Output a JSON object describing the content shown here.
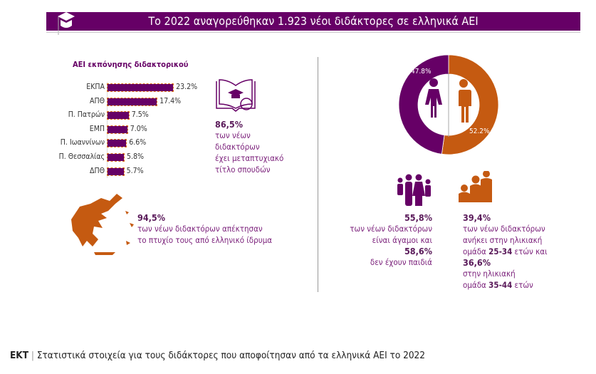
{
  "header": {
    "title": "Το 2022 αναγορεύθηκαν 1.923 νέοι διδάκτορες σε ελληνικά ΑΕΙ",
    "icon": "graduation-cap-icon"
  },
  "colors": {
    "purple": "#660066",
    "orange": "#c55a11"
  },
  "chart_data": [
    {
      "type": "bar",
      "orientation": "horizontal",
      "title": "ΑΕΙ εκπόνησης διδακτορικού",
      "categories": [
        "ΕΚΠΑ",
        "ΑΠΘ",
        "Π. Πατρών",
        "ΕΜΠ",
        "Π. Ιωαννίνων",
        "Π. Θεσσαλίας",
        "ΔΠΘ"
      ],
      "values": [
        23.2,
        17.4,
        7.5,
        7.0,
        6.6,
        5.8,
        5.7
      ],
      "labels": [
        "23.2%",
        "17.4%",
        "7.5%",
        "7.0%",
        "6.6%",
        "5.8%",
        "5.7%"
      ]
    },
    {
      "type": "pie",
      "donut": true,
      "slices": [
        {
          "label": "47.8%",
          "value": 47.8,
          "color": "#660066",
          "icon": "female-icon"
        },
        {
          "label": "52.2%",
          "value": 52.2,
          "color": "#c55a11",
          "icon": "male-icon"
        }
      ]
    }
  ],
  "stats": {
    "masters": {
      "value": "86,5%",
      "lines": [
        "των νέων",
        "διδακτόρων",
        "έχει μεταπτυχιακό",
        "τίτλο σπουδών"
      ],
      "icon": "book-graduation-icon"
    },
    "greek_degree": {
      "value": "94,5%",
      "lines": [
        "των νέων διδακτόρων απέκτησαν",
        "το πτυχίο τους από ελληνικό ίδρυμα"
      ],
      "icon": "greece-map-icon"
    },
    "family": {
      "value1": "55,8%",
      "line1": "των νέων διδακτόρων",
      "line2": "είναι άγαμοι και",
      "value2": "58,6%",
      "line3": "δεν έχουν παιδιά",
      "icon": "family-icon"
    },
    "age": {
      "value1": "39,4%",
      "line1": "των νέων διδακτόρων",
      "line2": "ανήκει στην ηλικιακή",
      "line3a": "ομάδα ",
      "range1": "25-34",
      "line3b": " ετών και",
      "value2": "36,6%",
      "line4": "στην ηλικιακή",
      "line5a": "ομάδα ",
      "range2": "35-44",
      "line5b": " ετών",
      "icon": "age-groups-icon"
    }
  },
  "footer": {
    "org": "ΕΚΤ",
    "sep": "|",
    "text": "Στατιστικά στοιχεία για τους διδάκτορες που αποφοίτησαν από τα ελληνικά ΑΕΙ το 2022"
  }
}
